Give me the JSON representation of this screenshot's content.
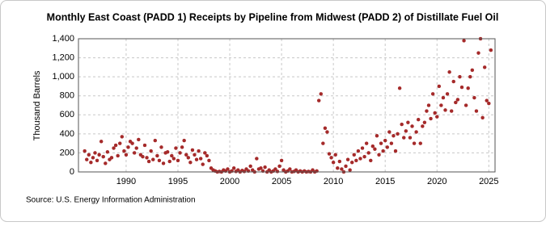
{
  "chart_data": {
    "type": "scatter",
    "title": "Monthly East Coast (PADD 1) Receipts by Pipeline from Midwest (PADD 2) of Distillate Fuel Oil",
    "y_label": "Thousand Barrels",
    "source": "Source: U.S. Energy Information Administration",
    "color": "#a52a2a",
    "grid": true,
    "xlim": [
      1985.4,
      2025.6
    ],
    "xticks": [
      1990,
      1995,
      2000,
      2005,
      2010,
      2015,
      2020,
      2025
    ],
    "ylim": [
      0,
      1400
    ],
    "yticks": [
      0,
      200,
      400,
      600,
      800,
      {
        "value": 1000,
        "label": "1,000"
      },
      {
        "value": 1200,
        "label": "1,200"
      },
      {
        "value": 1400,
        "label": "1,400"
      }
    ],
    "x": [
      1986,
      1986.2,
      1986.4,
      1986.6,
      1986.8,
      1987,
      1987.2,
      1987.4,
      1987.6,
      1987.8,
      1988,
      1988.2,
      1988.4,
      1988.6,
      1988.8,
      1989,
      1989.2,
      1989.4,
      1989.6,
      1989.8,
      1990,
      1990.2,
      1990.4,
      1990.6,
      1990.8,
      1991,
      1991.2,
      1991.4,
      1991.6,
      1991.8,
      1992,
      1992.2,
      1992.4,
      1992.6,
      1992.8,
      1993,
      1993.2,
      1993.4,
      1993.6,
      1993.8,
      1994,
      1994.2,
      1994.4,
      1994.6,
      1994.8,
      1995,
      1995.2,
      1995.4,
      1995.6,
      1995.8,
      1996,
      1996.2,
      1996.4,
      1996.6,
      1996.8,
      1997,
      1997.2,
      1997.4,
      1997.6,
      1997.8,
      1998,
      1998.2,
      1998.4,
      1998.6,
      1998.8,
      1999,
      1999.2,
      1999.4,
      1999.6,
      1999.8,
      2000,
      2000.2,
      2000.4,
      2000.6,
      2000.8,
      2001,
      2001.2,
      2001.4,
      2001.6,
      2001.8,
      2002,
      2002.2,
      2002.4,
      2002.6,
      2002.8,
      2003,
      2003.2,
      2003.4,
      2003.6,
      2003.8,
      2004,
      2004.2,
      2004.4,
      2004.6,
      2004.8,
      2005,
      2005.2,
      2005.4,
      2005.6,
      2005.8,
      2006,
      2006.2,
      2006.4,
      2006.6,
      2006.8,
      2007,
      2007.2,
      2007.4,
      2007.6,
      2007.8,
      2008,
      2008.2,
      2008.4,
      2008.6,
      2008.8,
      2009,
      2009.2,
      2009.4,
      2009.6,
      2009.8,
      2010,
      2010.2,
      2010.4,
      2010.6,
      2010.8,
      2011,
      2011.2,
      2011.4,
      2011.6,
      2011.8,
      2012,
      2012.2,
      2012.4,
      2012.6,
      2012.8,
      2013,
      2013.2,
      2013.4,
      2013.6,
      2013.8,
      2014,
      2014.2,
      2014.4,
      2014.6,
      2014.8,
      2015,
      2015.2,
      2015.4,
      2015.6,
      2015.8,
      2016,
      2016.2,
      2016.4,
      2016.6,
      2016.8,
      2017,
      2017.2,
      2017.4,
      2017.6,
      2017.8,
      2018,
      2018.2,
      2018.4,
      2018.6,
      2018.8,
      2019,
      2019.2,
      2019.4,
      2019.6,
      2019.8,
      2020,
      2020.2,
      2020.4,
      2020.6,
      2020.8,
      2021,
      2021.2,
      2021.4,
      2021.6,
      2021.8,
      2022,
      2022.2,
      2022.4,
      2022.6,
      2022.8,
      2023,
      2023.2,
      2023.4,
      2023.6,
      2023.8,
      2024,
      2024.2,
      2024.4,
      2024.6,
      2024.8,
      2025,
      2025.2
    ],
    "values": [
      220,
      130,
      180,
      100,
      150,
      200,
      120,
      180,
      320,
      160,
      90,
      210,
      130,
      150,
      250,
      280,
      170,
      300,
      370,
      220,
      180,
      260,
      320,
      300,
      200,
      250,
      340,
      180,
      160,
      280,
      150,
      110,
      220,
      130,
      330,
      170,
      120,
      260,
      90,
      200,
      210,
      110,
      170,
      140,
      250,
      120,
      200,
      260,
      330,
      180,
      150,
      100,
      230,
      180,
      130,
      220,
      140,
      80,
      200,
      170,
      120,
      40,
      20,
      10,
      0,
      5,
      0,
      20,
      10,
      30,
      0,
      10,
      40,
      5,
      20,
      0,
      15,
      5,
      30,
      10,
      60,
      20,
      0,
      140,
      30,
      40,
      10,
      50,
      0,
      20,
      0,
      10,
      30,
      5,
      60,
      120,
      20,
      0,
      10,
      30,
      0,
      5,
      20,
      0,
      10,
      0,
      10,
      0,
      5,
      0,
      20,
      0,
      10,
      750,
      820,
      300,
      460,
      420,
      190,
      150,
      100,
      180,
      40,
      110,
      30,
      0,
      60,
      130,
      20,
      100,
      180,
      120,
      220,
      140,
      250,
      160,
      300,
      200,
      120,
      270,
      240,
      380,
      180,
      300,
      220,
      330,
      260,
      420,
      300,
      380,
      220,
      400,
      880,
      500,
      360,
      430,
      520,
      360,
      480,
      300,
      420,
      550,
      300,
      480,
      520,
      640,
      700,
      560,
      820,
      620,
      580,
      900,
      700,
      780,
      650,
      820,
      1050,
      640,
      950,
      730,
      760,
      1000,
      890,
      1380,
      700,
      880,
      1000,
      1070,
      780,
      640,
      1250,
      1400,
      570,
      1100,
      750,
      720,
      1280
    ]
  }
}
